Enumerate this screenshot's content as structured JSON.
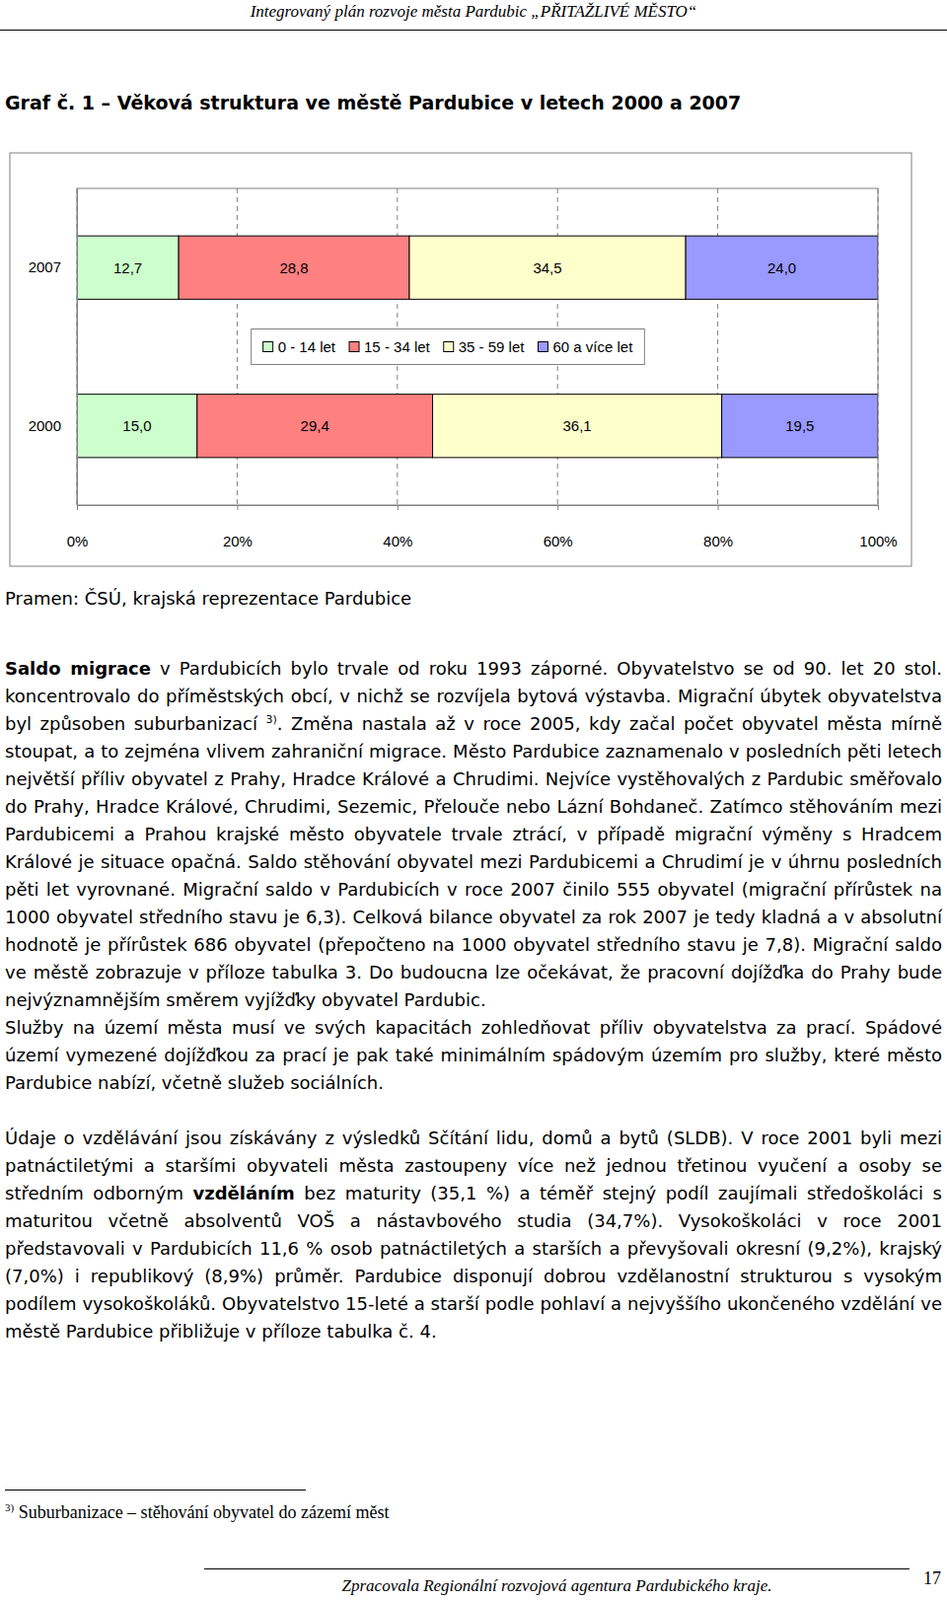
{
  "header": "Integrovaný plán rozvoje města Pardubic „PŘITAŽLIVÉ MĚSTO“",
  "chart_data": {
    "type": "bar",
    "title": "Graf č. 1 – Věková struktura ve městě Pardubice v letech 2000 a 2007",
    "orientation": "horizontal",
    "stacked": true,
    "data_labels": true,
    "grid": true,
    "legend": "center",
    "categories": [
      "2007",
      "2000"
    ],
    "series": [
      {
        "name": "0 - 14 let",
        "color": "#ccffcc",
        "values": [
          12.7,
          15.0
        ],
        "value_labels": [
          "12,7",
          "15,0"
        ]
      },
      {
        "name": "15 - 34 let",
        "color": "#ff8080",
        "values": [
          28.8,
          29.4
        ],
        "value_labels": [
          "28,8",
          "29,4"
        ]
      },
      {
        "name": "35 - 59 let",
        "color": "#ffffcc",
        "values": [
          34.5,
          36.1
        ],
        "value_labels": [
          "34,5",
          "36,1"
        ]
      },
      {
        "name": "60 a více let",
        "color": "#9999ff",
        "values": [
          24.0,
          19.5
        ],
        "value_labels": [
          "24,0",
          "19,5"
        ]
      }
    ],
    "xlim": [
      0,
      100
    ],
    "xticks": [
      {
        "value": 0,
        "label": "0%"
      },
      {
        "value": 20,
        "label": "20%"
      },
      {
        "value": 40,
        "label": "40%"
      },
      {
        "value": 60,
        "label": "60%"
      },
      {
        "value": 80,
        "label": "80%"
      },
      {
        "value": 100,
        "label": "100%"
      }
    ]
  },
  "source": "Pramen: ČSÚ, krajská reprezentace Pardubice",
  "paragraphs": [
    [
      {
        "text": "Saldo migrace",
        "bold": true
      },
      {
        "text": " v Pardubicích bylo trvale od roku 1993 záporné. Obyvatelstvo se od 90. let 20 stol. koncentrovalo do příměstských obcí, v nichž se rozvíjela bytová výstavba. Migrační úbytek obyvatelstva byl způsoben suburbanizací "
      },
      {
        "text": "3)",
        "sup": true
      },
      {
        "text": ". Změna nastala až v roce 2005, kdy začal počet obyvatel města mírně stoupat, a to zejména vlivem zahraniční migrace. Město Pardubice zaznamenalo v posledních pěti letech největší příliv obyvatel z Prahy, Hradce Králové a Chrudimi. Nejvíce vystěhovalých z Pardubic směřovalo do Prahy, Hradce Králové, Chrudimi, Sezemic, Přelouče nebo Lázní Bohdaneč. Zatímco stěhováním mezi Pardubicemi a Prahou krajské město obyvatele trvale ztrácí, v případě migrační výměny s Hradcem Králové je situace opačná. Saldo stěhování obyvatel mezi Pardubicemi a Chrudimí je v úhrnu posledních pěti let vyrovnané. Migrační saldo v Pardubicích v roce 2007 činilo 555 obyvatel (migrační přírůstek na 1000 obyvatel středního stavu je 6,3). Celková bilance obyvatel za rok 2007 je tedy kladná a v absolutní hodnotě je přírůstek 686 obyvatel (přepočteno na 1000 obyvatel středního stavu je 7,8). Migrační saldo ve městě zobrazuje v příloze tabulka 3. Do budoucna lze očekávat, že pracovní dojížďka do Prahy bude nejvýznamnějším směrem vyjížďky obyvatel Pardubic."
      }
    ],
    [
      {
        "text": "Služby na území města musí ve svých kapacitách zohledňovat příliv obyvatelstva za prací. Spádové území vymezené dojížďkou za prací je pak také minimálním spádovým územím pro služby, které město Pardubice nabízí, včetně služeb sociálních."
      }
    ],
    [
      {
        "text": "Údaje o vzdělávání jsou získávány z výsledků Sčítání lidu, domů a bytů (SLDB). V roce 2001 byli mezi patnáctiletými a staršími obyvateli města zastoupeny více než jednou třetinou vyučení a osoby se středním odborným "
      },
      {
        "text": "vzděláním",
        "bold": true
      },
      {
        "text": " bez maturity (35,1 %) a téměř stejný podíl zaujímali středoškoláci s maturitou včetně absolventů VOŠ a nástavbového studia (34,7%). Vysokoškoláci v roce 2001 představovali v Pardubicích 11,6 % osob patnáctiletých a starších a převyšovali okresní (9,2%), krajský (7,0%) i republikový (8,9%) průměr. Pardubice disponují dobrou vzdělanostní strukturou s vysokým podílem vysokoškoláků. Obyvatelstvo 15-leté a starší podle pohlaví a nejvyššího ukončeného vzdělání ve městě Pardubice přibližuje v příloze tabulka č. 4."
      }
    ]
  ],
  "footnote": {
    "mark": "3)",
    "text": "Suburbanizace – stěhování obyvatel do zázemí měst"
  },
  "footer": "Zpracovala Regionální rozvojová agentura Pardubického kraje.",
  "page_number": "17"
}
